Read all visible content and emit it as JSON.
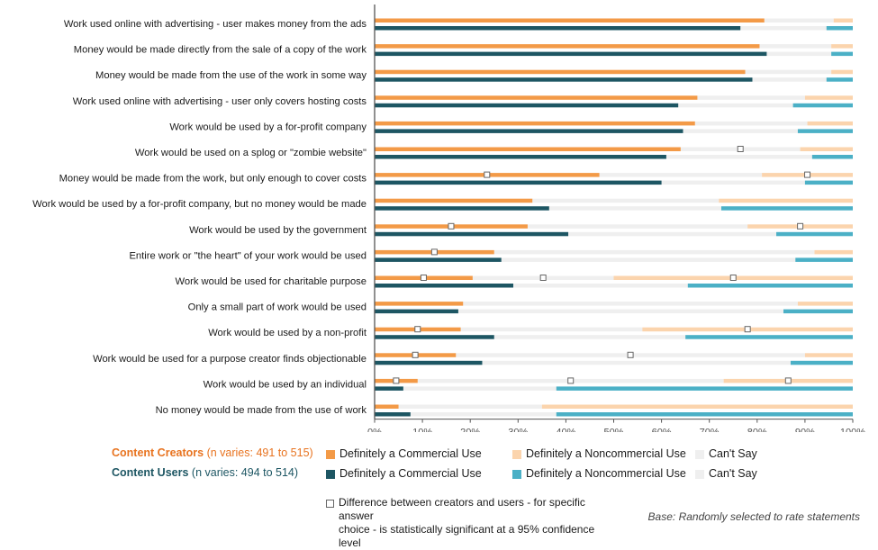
{
  "chart_data": {
    "type": "bar",
    "orientation": "horizontal-stacked",
    "categories": [
      "Work used online with advertising - user makes money from the ads",
      "Money would be made directly from the sale of a copy of the work",
      "Money would be made from the use of the work in some way",
      "Work used online with advertising - user  only covers hosting costs",
      "Work would be used by a for-profit company",
      "Work would be used on a splog or \"zombie website\"",
      "Money would be made from the work, but only enough to cover costs",
      "Work would be used by a for-profit company, but no money would be made",
      "Work would be used by the government",
      "Entire work or \"the heart\" of your work would be used",
      "Work would be used for charitable purpose",
      "Only a small part of work would be used",
      "Work would be used by a non-profit",
      "Work would be used for a purpose creator finds objectionable",
      "Work would be used by an individual",
      "No money would be made from the use of work"
    ],
    "xlim": [
      0,
      100
    ],
    "x_ticks": [
      "0%",
      "10%",
      "20%",
      "30%",
      "40%",
      "50%",
      "60%",
      "70%",
      "80%",
      "90%",
      "100%"
    ],
    "grid": false,
    "series": [
      {
        "group": "Content Creators",
        "commercial": [
          81.5,
          80.5,
          77.5,
          67.5,
          67,
          64,
          47,
          33,
          32,
          25,
          20.5,
          18.5,
          18,
          17,
          9,
          5
        ],
        "noncommercial": [
          4,
          4.5,
          4.5,
          10,
          9.5,
          11,
          19,
          28,
          22,
          8,
          50,
          11.5,
          44,
          10,
          27,
          65
        ],
        "significant": [
          [],
          [],
          [],
          [],
          [],
          [
            "cant_say"
          ],
          [
            "commercial",
            "noncommercial"
          ],
          [],
          [
            "commercial",
            "noncommercial"
          ],
          [
            "commercial"
          ],
          [
            "commercial",
            "cant_say",
            "noncommercial"
          ],
          [],
          [
            "commercial",
            "noncommercial"
          ],
          [
            "commercial",
            "cant_say"
          ],
          [
            "commercial",
            "cant_say",
            "noncommercial"
          ],
          []
        ]
      },
      {
        "group": "Content Users",
        "commercial": [
          76.5,
          82,
          79,
          63.5,
          64.5,
          61,
          60,
          36.5,
          40.5,
          26.5,
          29,
          17.5,
          25,
          22.5,
          6,
          7.5
        ],
        "noncommercial": [
          5.5,
          4.5,
          5.5,
          12.5,
          11.5,
          8.5,
          10,
          27.5,
          16,
          12,
          34.5,
          14.5,
          35,
          13,
          62,
          62
        ]
      }
    ],
    "colors": {
      "creators_commercial": "#f39a47",
      "creators_noncommercial": "#fbd4ad",
      "users_commercial": "#1d5663",
      "users_noncommercial": "#4bb0c6",
      "cant_say": "#efefef",
      "axis": "#555555"
    }
  },
  "legend": {
    "creators": {
      "name": "Content Creators",
      "n": "(n varies: 491 to 515)",
      "color": "#e8731f",
      "items": [
        "Definitely a Commercial Use",
        "Definitely a Noncommercial Use",
        "Can't Say"
      ]
    },
    "users": {
      "name": "Content Users",
      "n": "(n varies: 494 to 514)",
      "color": "#1d5663",
      "items": [
        "Definitely a Commercial Use",
        "Definitely a Noncommercial Use",
        "Can't Say"
      ]
    }
  },
  "note": {
    "line1": "Difference between creators and users - for specific answer",
    "line2": "choice - is statistically significant at a 95% confidence level"
  },
  "base_note": "Base: Randomly selected to rate statements"
}
